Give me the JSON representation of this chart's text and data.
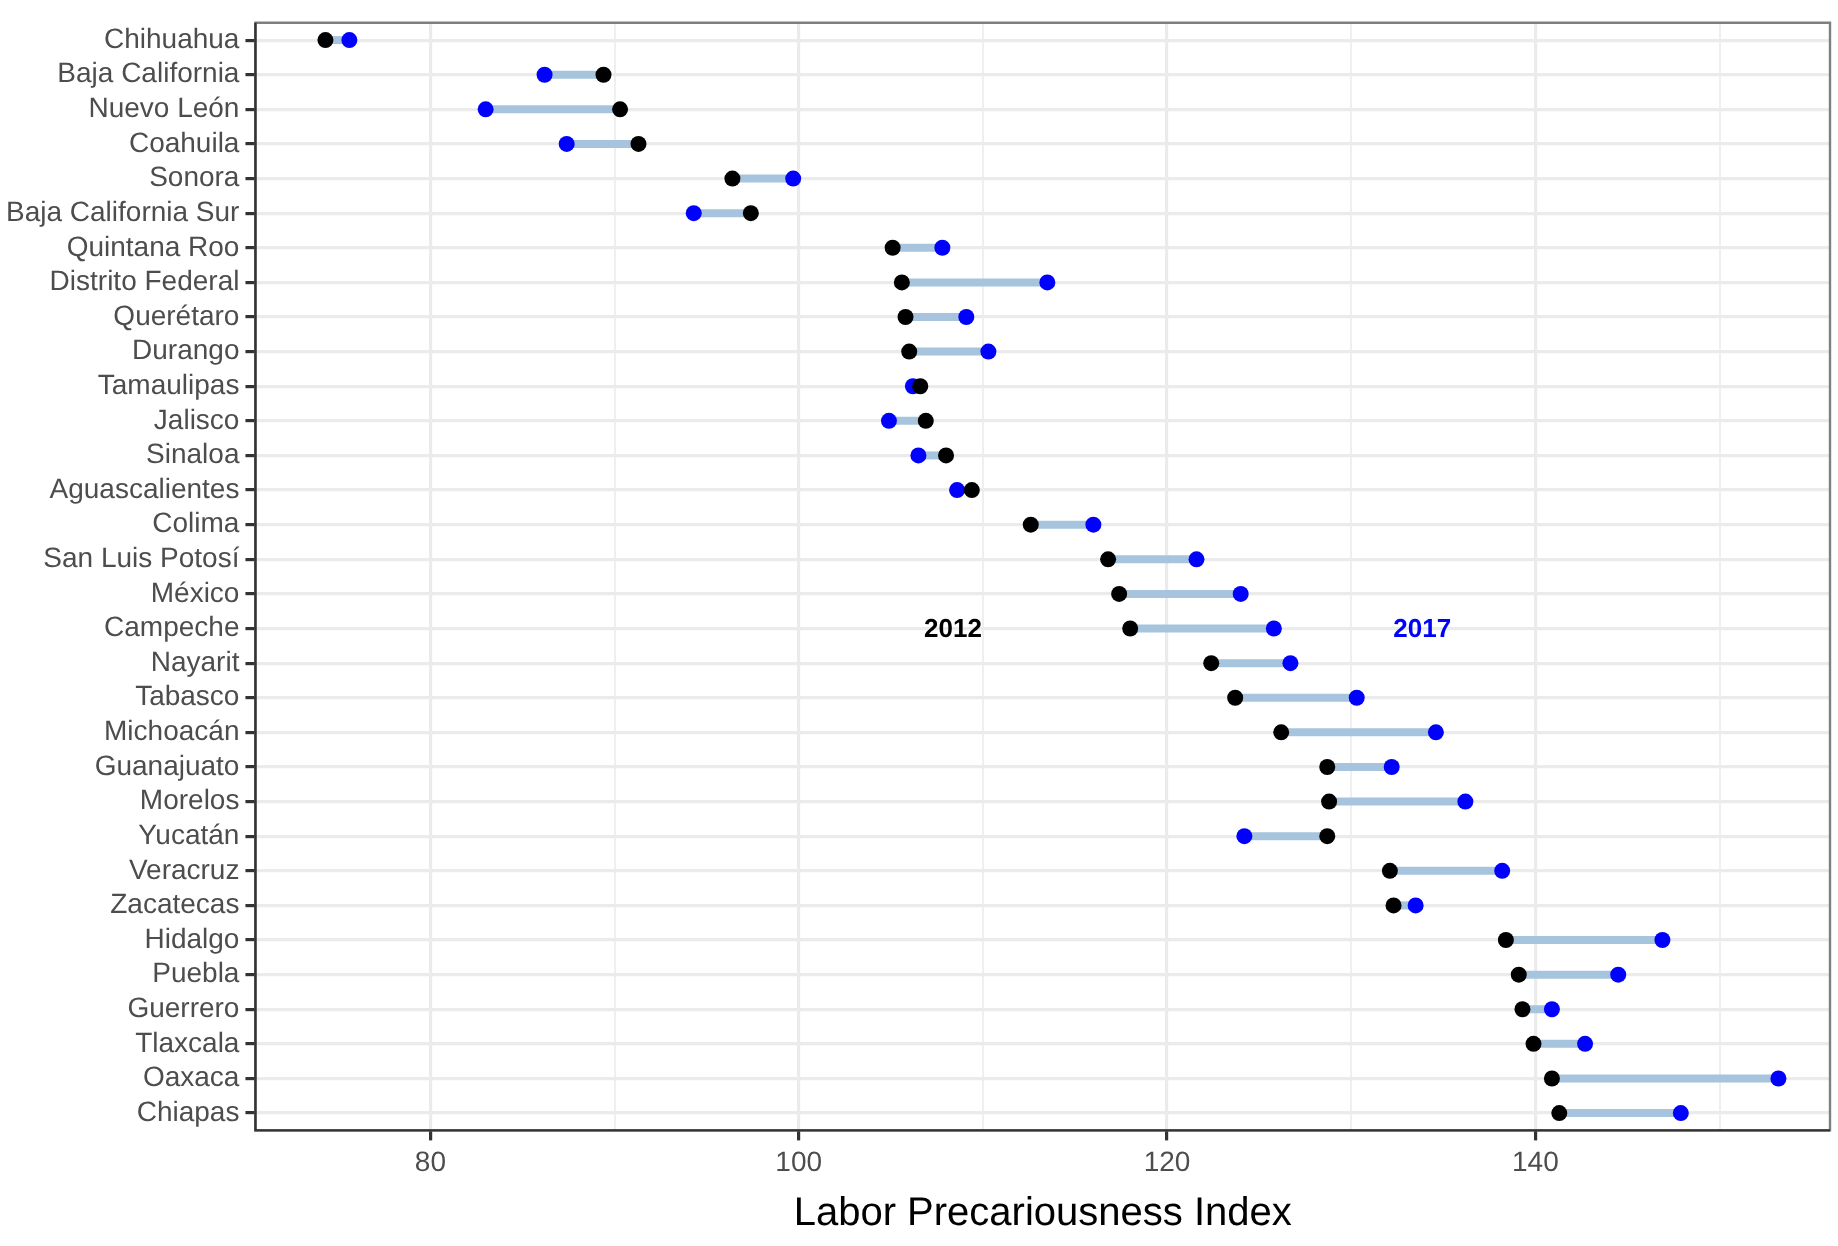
{
  "chart_data": {
    "type": "scatter",
    "orientation": "horizontal",
    "xlabel": "Labor Precariousness Index",
    "categories": [
      "Chihuahua",
      "Baja California",
      "Nuevo León",
      "Coahuila",
      "Sonora",
      "Baja California Sur",
      "Quintana Roo",
      "Distrito Federal",
      "Querétaro",
      "Durango",
      "Tamaulipas",
      "Jalisco",
      "Sinaloa",
      "Aguascalientes",
      "Colima",
      "San Luis Potosí",
      "México",
      "Campeche",
      "Nayarit",
      "Tabasco",
      "Michoacán",
      "Guanajuato",
      "Morelos",
      "Yucatán",
      "Veracruz",
      "Zacatecas",
      "Hidalgo",
      "Puebla",
      "Guerrero",
      "Tlaxcala",
      "Oaxaca",
      "Chiapas"
    ],
    "series": [
      {
        "name": "2012",
        "color": "#000000",
        "values": [
          74.3,
          89.4,
          90.3,
          91.3,
          96.4,
          97.4,
          105.1,
          105.6,
          105.8,
          106.0,
          106.6,
          106.9,
          108.0,
          109.4,
          112.6,
          116.8,
          117.4,
          118.0,
          122.4,
          123.7,
          126.2,
          128.7,
          128.8,
          128.7,
          132.1,
          132.3,
          138.4,
          139.1,
          139.3,
          139.9,
          140.9,
          141.3
        ]
      },
      {
        "name": "2017",
        "color": "#0000ff",
        "values": [
          75.6,
          86.2,
          83.0,
          87.4,
          99.7,
          94.3,
          107.8,
          113.5,
          109.1,
          110.3,
          106.2,
          104.9,
          106.5,
          108.6,
          116.0,
          121.6,
          124.0,
          125.8,
          126.7,
          130.3,
          134.6,
          132.2,
          136.2,
          124.2,
          138.2,
          133.5,
          146.9,
          144.5,
          140.9,
          142.7,
          153.2,
          147.9
        ]
      }
    ],
    "xlim": [
      70.5,
      156
    ],
    "xticks": [
      80,
      {
        "value": 90,
        "label": null
      },
      100,
      {
        "value": 110,
        "label": null
      },
      120,
      {
        "value": 130,
        "label": null
      },
      140,
      {
        "value": 150,
        "label": null
      }
    ],
    "grid": true,
    "legend": false,
    "marker": "circle"
  }
}
